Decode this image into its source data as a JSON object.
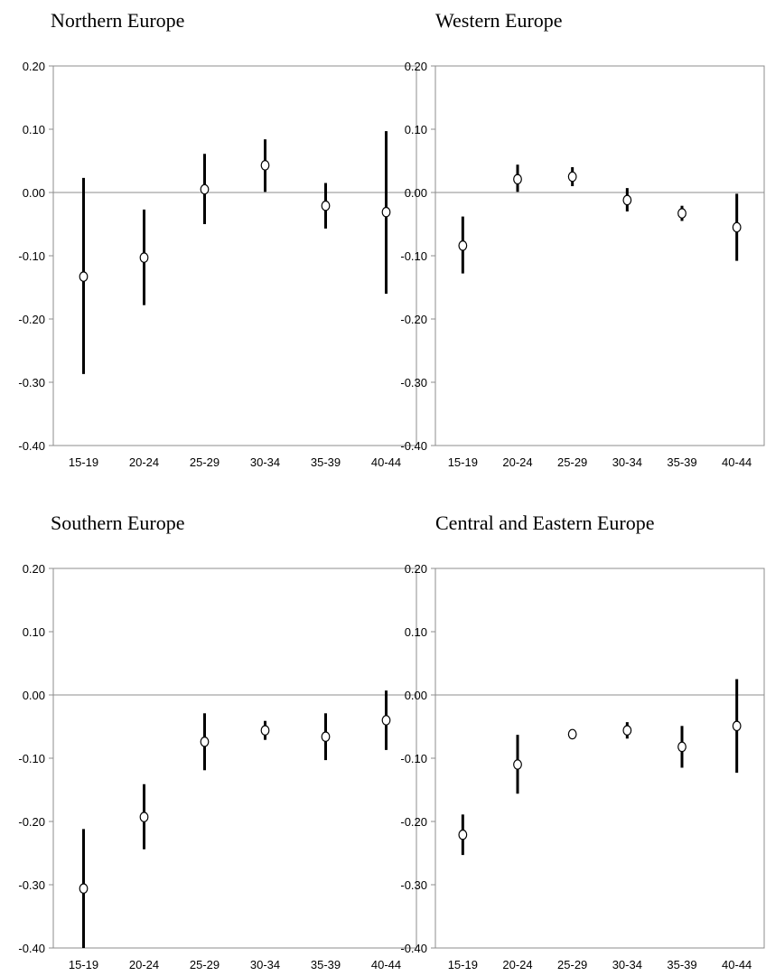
{
  "chart_data": [
    {
      "type": "scatter",
      "title": "Northern Europe",
      "categories": [
        "15-19",
        "20-24",
        "25-29",
        "30-34",
        "35-39",
        "40-44"
      ],
      "ylim": [
        -0.4,
        0.2
      ],
      "yticks": [
        "0.20",
        "0.10",
        "0.00",
        "-0.10",
        "-0.20",
        "-0.30",
        "-0.40"
      ],
      "values": [
        -0.133,
        -0.103,
        0.005,
        0.043,
        -0.021,
        -0.031
      ],
      "lower": [
        -0.287,
        -0.178,
        -0.05,
        0.001,
        -0.057,
        -0.16
      ],
      "upper": [
        0.023,
        -0.027,
        0.061,
        0.084,
        0.015,
        0.097
      ],
      "grid": false,
      "zero_line": true
    },
    {
      "type": "scatter",
      "title": "Western Europe",
      "categories": [
        "15-19",
        "20-24",
        "25-29",
        "30-34",
        "35-39",
        "40-44"
      ],
      "ylim": [
        -0.4,
        0.2
      ],
      "yticks": [
        "0.20",
        "0.10",
        "0.00",
        "-0.10",
        "-0.20",
        "-0.30",
        "-0.40"
      ],
      "values": [
        -0.084,
        0.021,
        0.025,
        -0.012,
        -0.033,
        -0.055
      ],
      "lower": [
        -0.128,
        0.001,
        0.01,
        -0.03,
        -0.045,
        -0.108
      ],
      "upper": [
        -0.038,
        0.044,
        0.04,
        0.007,
        -0.021,
        -0.002
      ],
      "grid": false,
      "zero_line": true
    },
    {
      "type": "scatter",
      "title": "Southern Europe",
      "categories": [
        "15-19",
        "20-24",
        "25-29",
        "30-34",
        "35-39",
        "40-44"
      ],
      "ylim": [
        -0.4,
        0.2
      ],
      "yticks": [
        "0.20",
        "0.10",
        "0.00",
        "-0.10",
        "-0.20",
        "-0.30",
        "-0.40"
      ],
      "values": [
        -0.306,
        -0.193,
        -0.074,
        -0.056,
        -0.066,
        -0.04
      ],
      "lower": [
        -0.4,
        -0.244,
        -0.119,
        -0.071,
        -0.103,
        -0.087
      ],
      "upper": [
        -0.212,
        -0.141,
        -0.029,
        -0.041,
        -0.029,
        0.007
      ],
      "grid": false,
      "zero_line": true
    },
    {
      "type": "scatter",
      "title": "Central and Eastern Europe",
      "categories": [
        "15-19",
        "20-24",
        "25-29",
        "30-34",
        "35-39",
        "40-44"
      ],
      "ylim": [
        -0.4,
        0.2
      ],
      "yticks": [
        "0.20",
        "0.10",
        "0.00",
        "-0.10",
        "-0.20",
        "-0.30",
        "-0.40"
      ],
      "values": [
        -0.221,
        -0.11,
        -0.062,
        -0.056,
        -0.082,
        -0.049
      ],
      "lower": [
        -0.253,
        -0.156,
        -0.067,
        -0.069,
        -0.115,
        -0.123
      ],
      "upper": [
        -0.189,
        -0.063,
        -0.057,
        -0.043,
        -0.049,
        0.025
      ],
      "grid": false,
      "zero_line": true
    }
  ]
}
